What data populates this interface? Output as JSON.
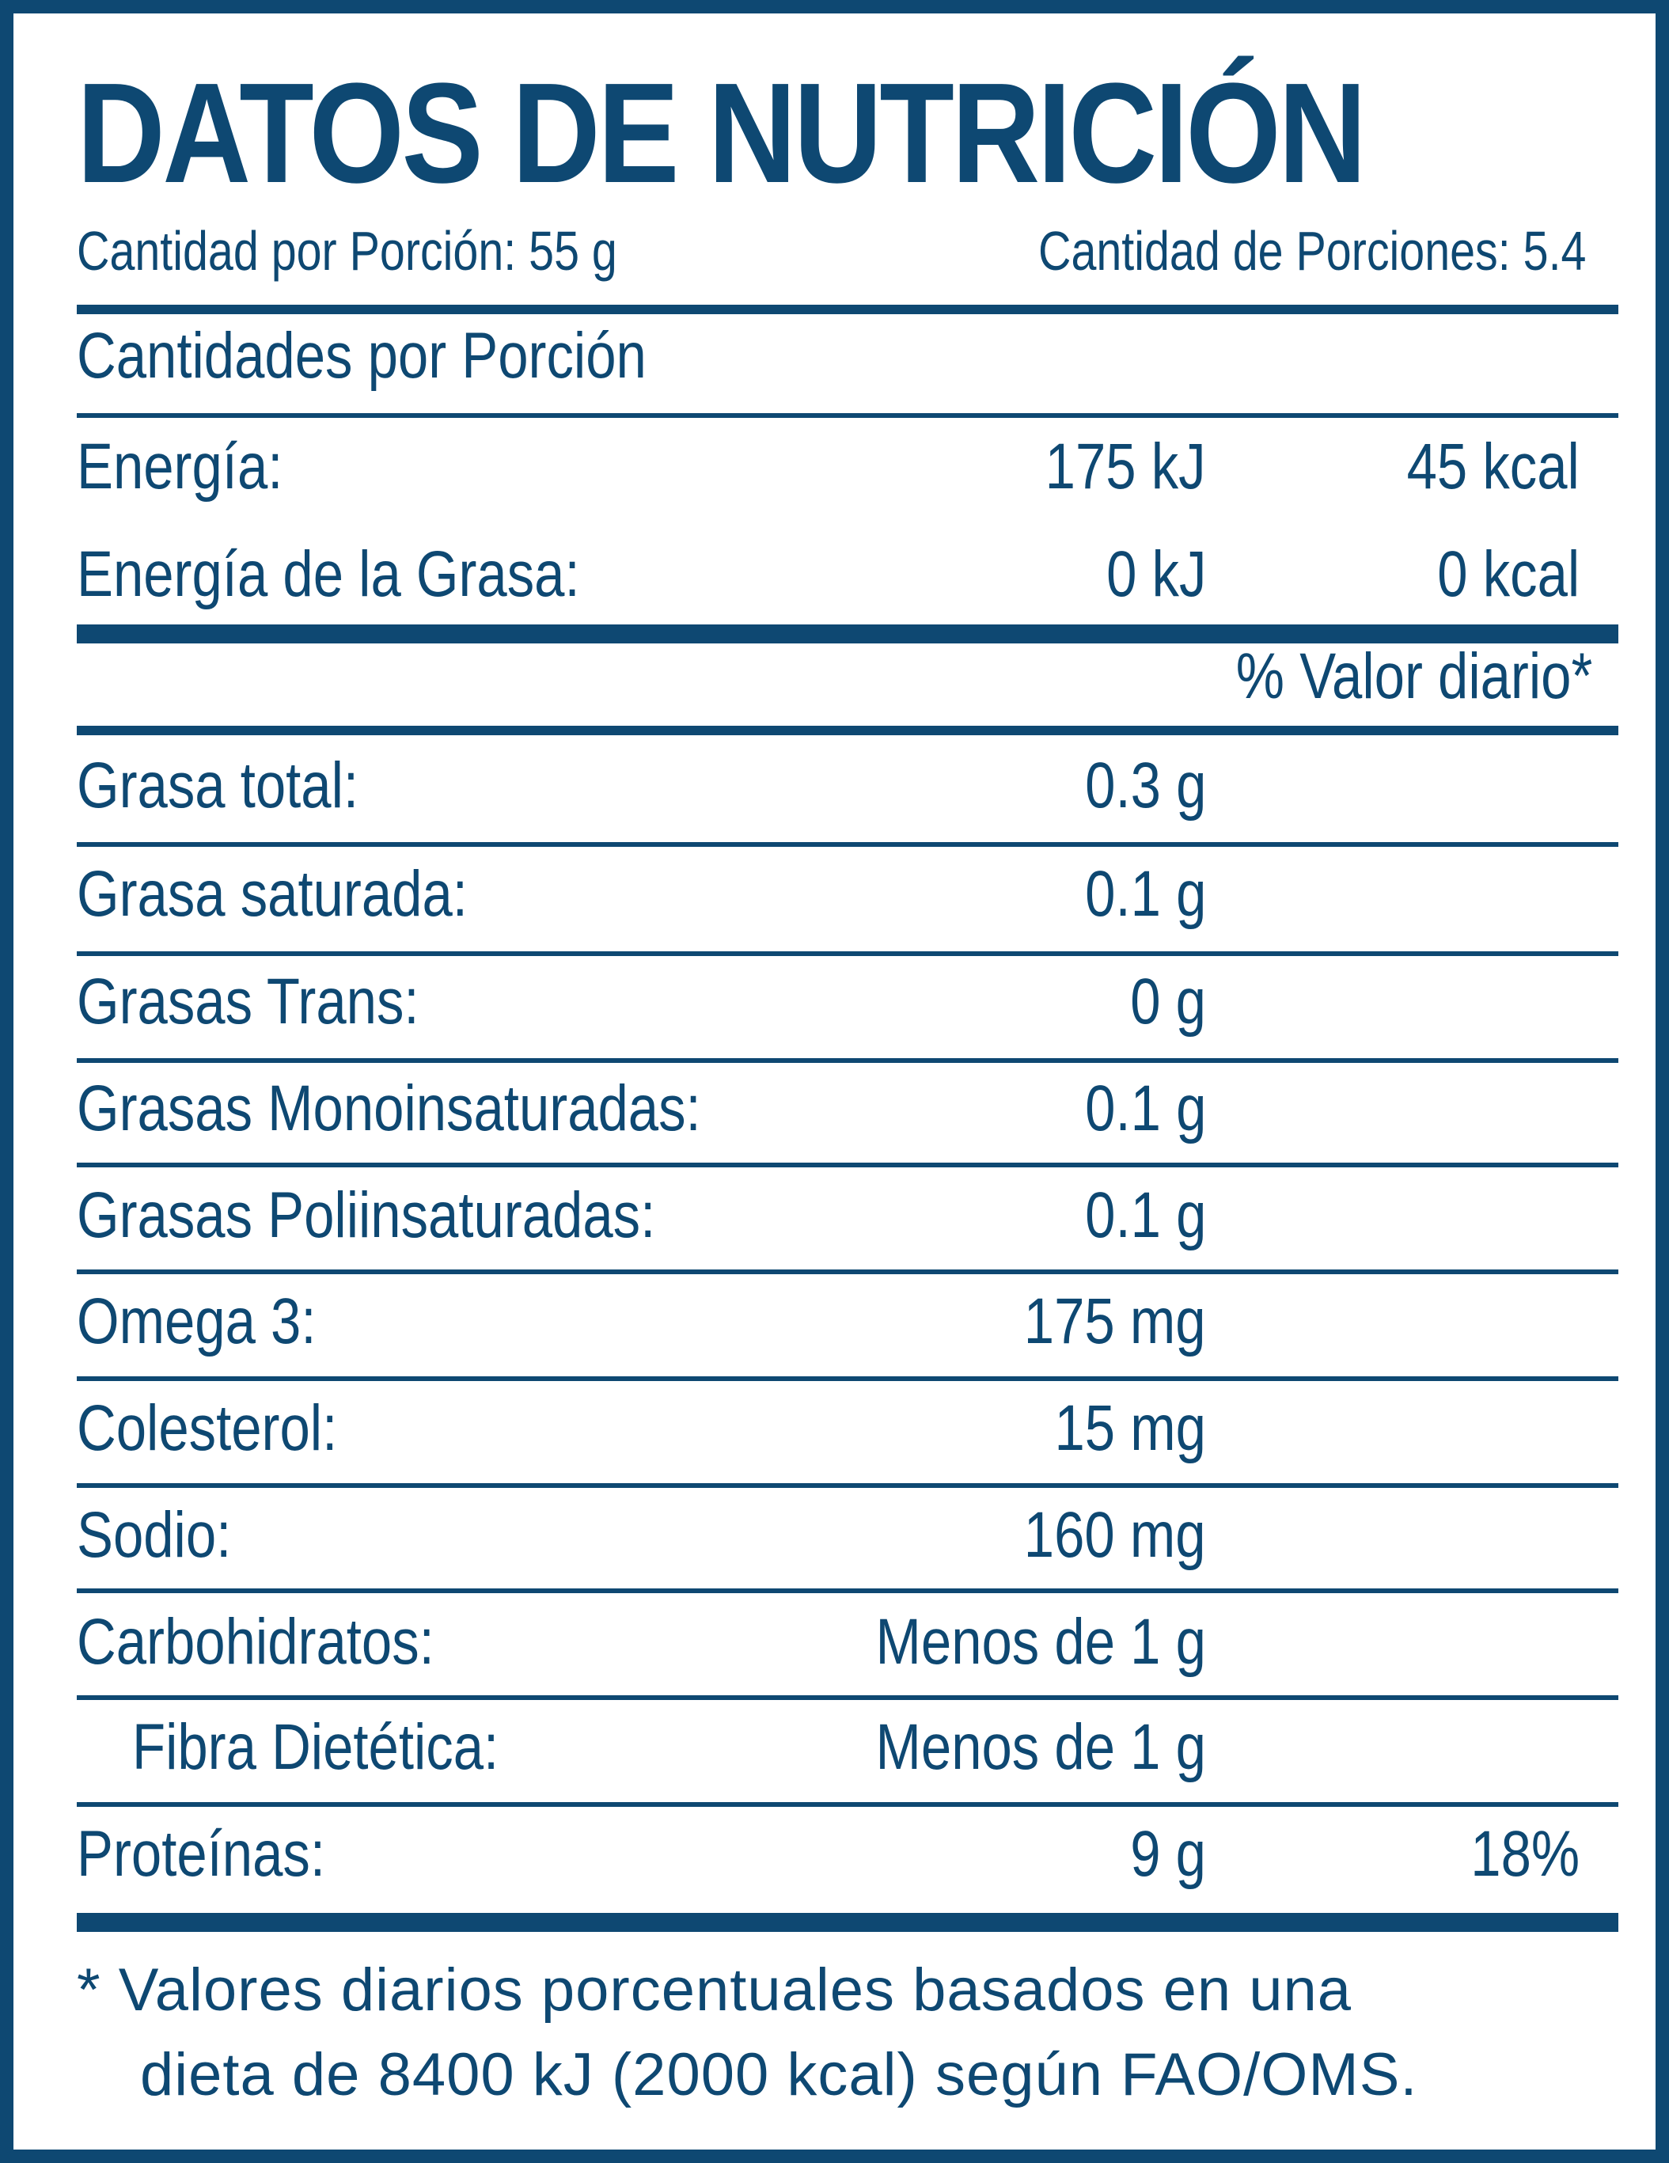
{
  "title": "DATOS DE NUTRICIÓN",
  "serving": {
    "size": "Cantidad por Porción: 55 g",
    "count": "Cantidad de Porciones: 5.4"
  },
  "per_serving_heading": "Cantidades por Porción",
  "energy": {
    "label": "Energía:",
    "kj": "175 kJ",
    "kcal": "45 kcal"
  },
  "energy_fat": {
    "label": "Energía de la Grasa:",
    "kj": "0 kJ",
    "kcal": "0 kcal"
  },
  "daily_value_heading": "% Valor diario*",
  "nutrients": [
    {
      "label": "Grasa total:",
      "amount": "0.3 g",
      "dv": ""
    },
    {
      "label": "Grasa saturada:",
      "amount": "0.1 g",
      "dv": ""
    },
    {
      "label": "Grasas Trans:",
      "amount": "0 g",
      "dv": ""
    },
    {
      "label": "Grasas Monoinsaturadas:",
      "amount": "0.1 g",
      "dv": ""
    },
    {
      "label": "Grasas Poliinsaturadas:",
      "amount": "0.1 g",
      "dv": ""
    },
    {
      "label": "Omega 3:",
      "amount": "175 mg",
      "dv": ""
    },
    {
      "label": "Colesterol:",
      "amount": "15 mg",
      "dv": ""
    },
    {
      "label": "Sodio:",
      "amount": "160 mg",
      "dv": ""
    },
    {
      "label": "Carbohidratos:",
      "amount": "Menos de 1 g",
      "dv": ""
    },
    {
      "label": "Fibra Dietética:",
      "amount": "Menos de 1 g",
      "dv": ""
    },
    {
      "label": "Proteínas:",
      "amount": "9 g",
      "dv": "18%"
    }
  ],
  "footnote": {
    "line1": "* Valores diarios porcentuales basados en una",
    "line2": "dieta de 8400 kJ (2000 kcal) según FAO/OMS."
  },
  "colors": {
    "ink": "#0e4872",
    "background": "#ffffff"
  }
}
